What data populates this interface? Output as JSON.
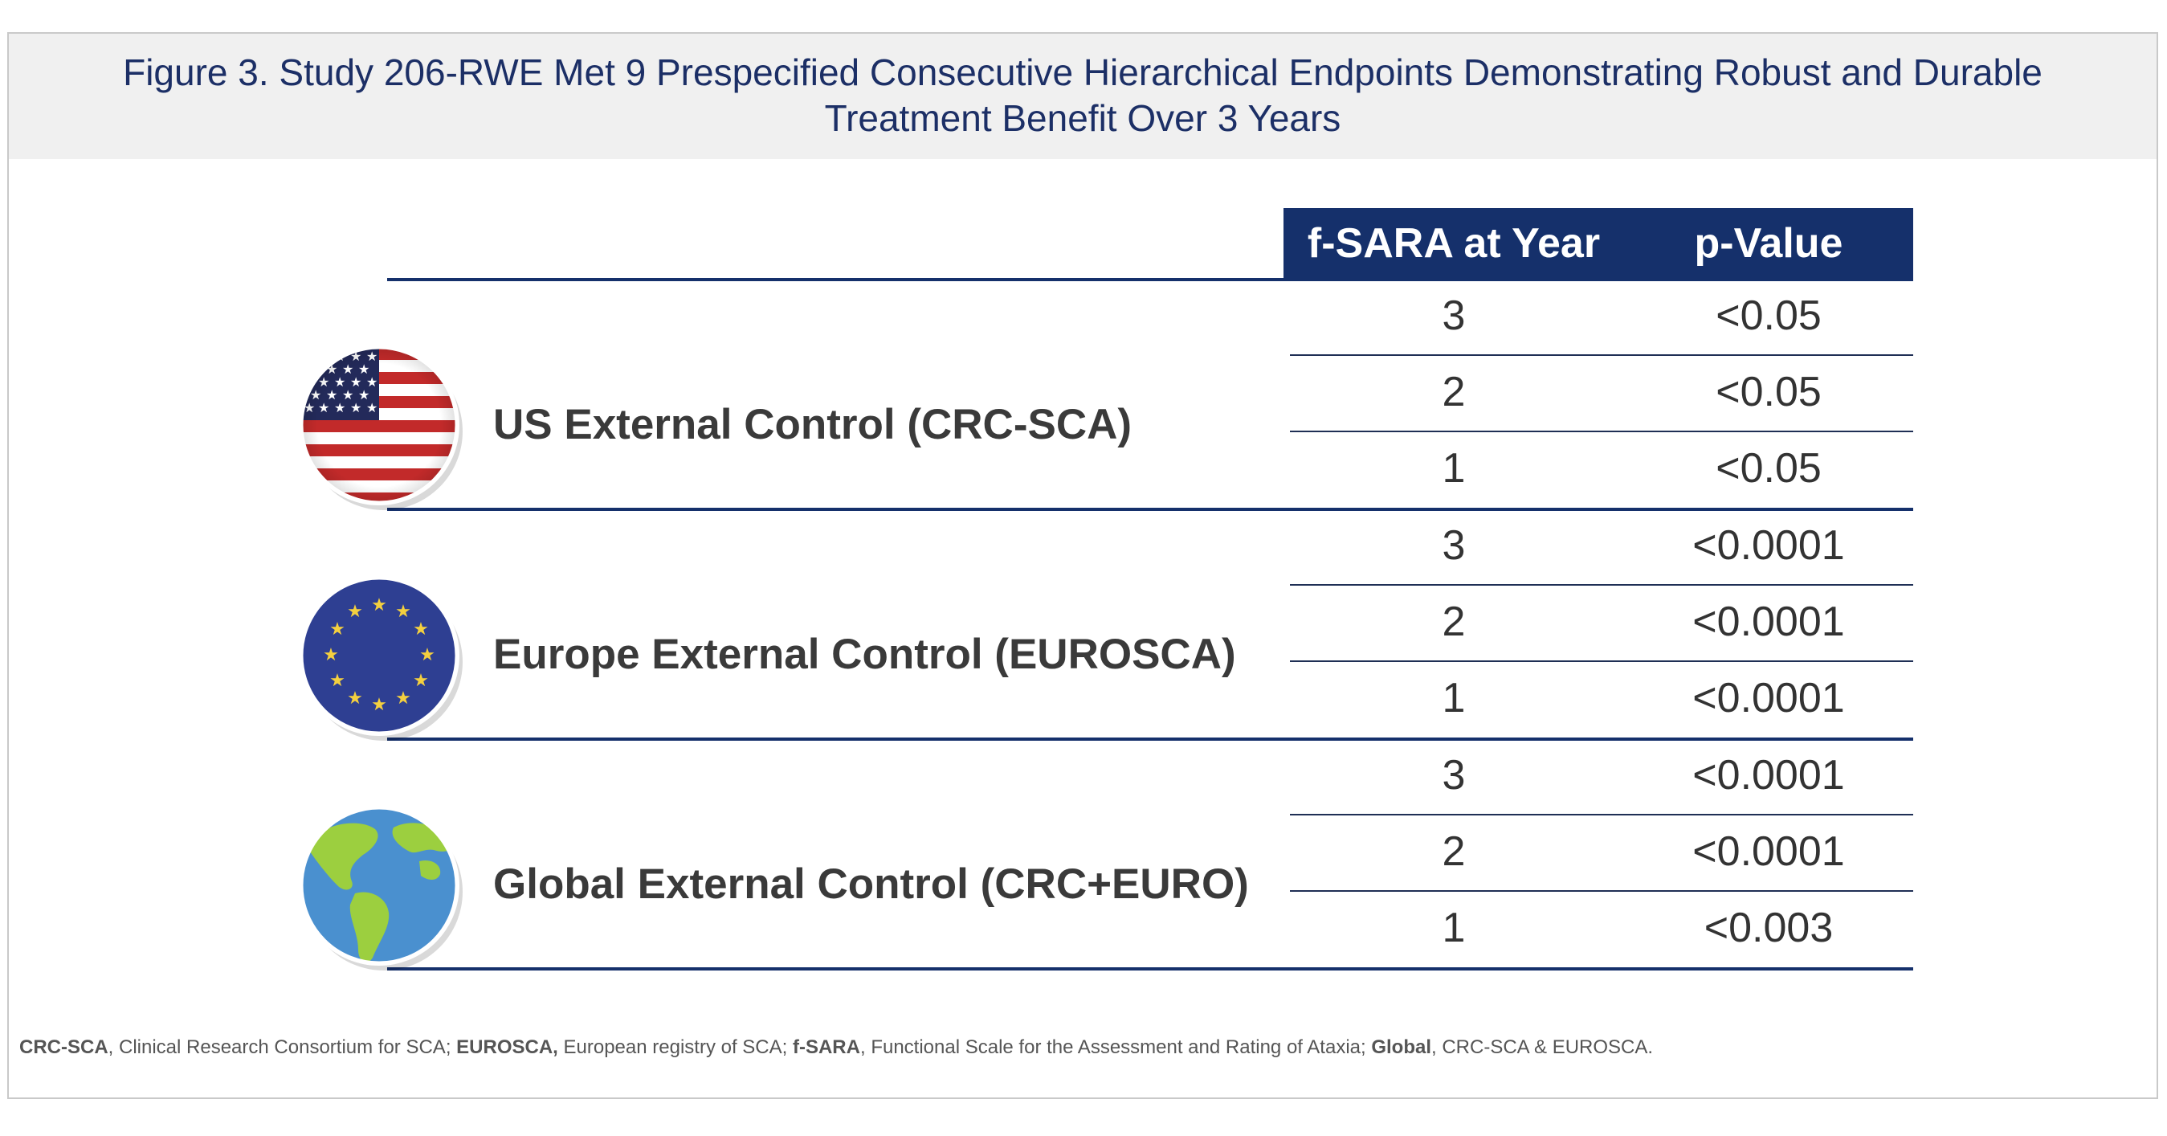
{
  "title": "Figure 3. Study 206-RWE Met 9 Prespecified Consecutive Hierarchical Endpoints Demonstrating Robust and Durable\nTreatment Benefit Over 3 Years",
  "table": {
    "columns": [
      "f-SARA at Year",
      "p-Value"
    ],
    "groups": [
      {
        "label": "US External Control (CRC-SCA)",
        "icon": "us-flag-icon",
        "rows": [
          {
            "year": "3",
            "p": "<0.05"
          },
          {
            "year": "2",
            "p": "<0.05"
          },
          {
            "year": "1",
            "p": "<0.05"
          }
        ]
      },
      {
        "label": "Europe External Control (EUROSCA)",
        "icon": "eu-flag-icon",
        "rows": [
          {
            "year": "3",
            "p": "<0.0001"
          },
          {
            "year": "2",
            "p": "<0.0001"
          },
          {
            "year": "1",
            "p": "<0.0001"
          }
        ]
      },
      {
        "label": "Global External Control (CRC+EURO)",
        "icon": "globe-icon",
        "rows": [
          {
            "year": "3",
            "p": "<0.0001"
          },
          {
            "year": "2",
            "p": "<0.0001"
          },
          {
            "year": "1",
            "p": "<0.003"
          }
        ]
      }
    ]
  },
  "footnote": [
    {
      "term": "CRC-SCA",
      "def": ", Clinical Research Consortium for SCA; "
    },
    {
      "term": "EUROSCA,",
      "def": " European registry of SCA; "
    },
    {
      "term": "f-SARA",
      "def": ", Functional Scale for the Assessment and Rating of Ataxia; "
    },
    {
      "term": "Global",
      "def": ", CRC-SCA & EUROSCA."
    }
  ],
  "colors": {
    "header_navy": "#15306b",
    "title_blue": "#1c2f66",
    "title_band": "#f0f0f0"
  }
}
